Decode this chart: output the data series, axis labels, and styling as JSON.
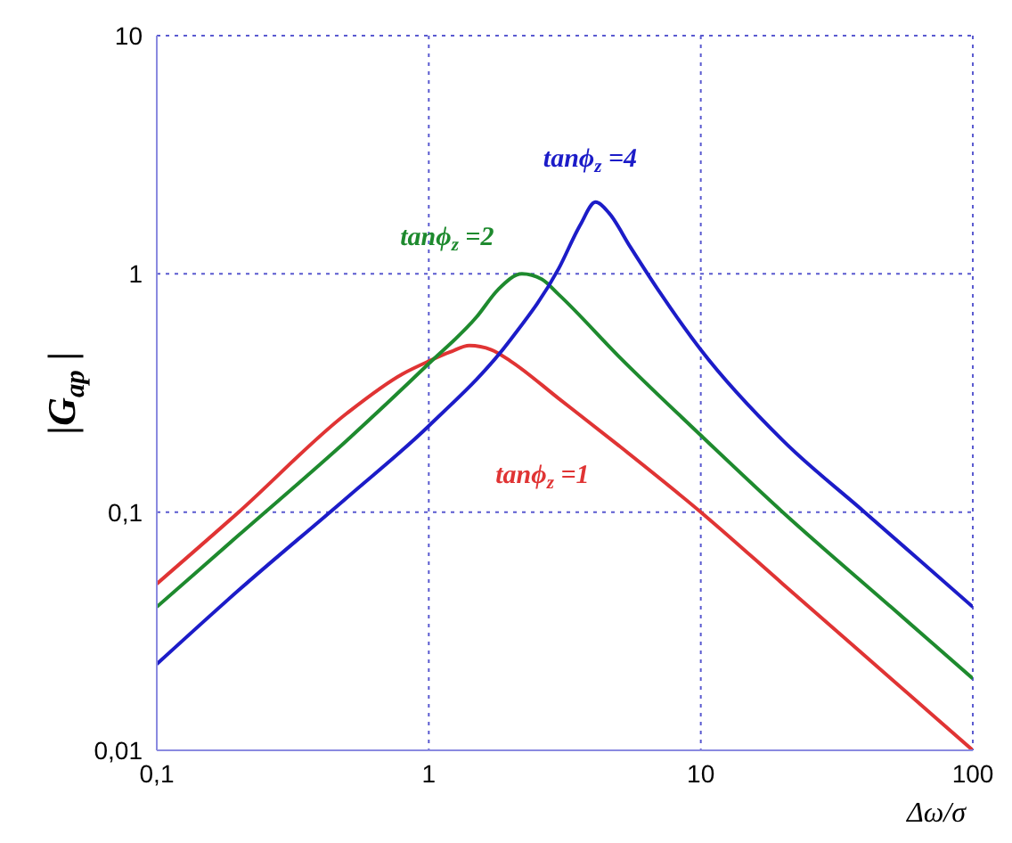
{
  "chart_data": {
    "type": "line",
    "xlabel": "Δω/σ",
    "ylabel": "|G$_{ap}$|",
    "log": "xy",
    "grid": true,
    "legend": false,
    "marker": "none",
    "line_style": "solid",
    "xlim": [
      0.1,
      100
    ],
    "xticks": [
      {
        "value": 0.1,
        "label": "0,1"
      },
      1,
      10,
      100
    ],
    "ylim": [
      0.01,
      10
    ],
    "yticks": [
      {
        "value": 0.01,
        "label": "0,01"
      },
      {
        "value": 0.1,
        "label": "0,1"
      },
      1,
      10
    ],
    "series": [
      {
        "name": "tanϕ$_{z}$ =1",
        "color": "#e03434",
        "x": [
          0.1,
          0.2,
          0.5,
          0.8,
          1,
          1.2,
          1.41,
          1.7,
          2,
          3,
          5,
          10,
          20,
          50,
          100
        ],
        "values": [
          0.05,
          0.1,
          0.26,
          0.38,
          0.43,
          0.47,
          0.5,
          0.48,
          0.43,
          0.3,
          0.19,
          0.1,
          0.05,
          0.02,
          0.01
        ]
      },
      {
        "name": "tanϕ$_{z}$ =2",
        "color": "#1e8a2e",
        "x": [
          0.1,
          0.2,
          0.5,
          1,
          1.5,
          1.8,
          2.2,
          2.6,
          3,
          5,
          10,
          20,
          50,
          100
        ],
        "values": [
          0.04,
          0.08,
          0.2,
          0.42,
          0.66,
          0.86,
          1.0,
          0.95,
          0.82,
          0.45,
          0.21,
          0.1,
          0.04,
          0.02
        ]
      },
      {
        "name": "tanϕ$_{z}$ =4",
        "color": "#1c1cc8",
        "x": [
          0.1,
          0.2,
          0.5,
          1,
          2,
          3,
          3.6,
          4.1,
          4.6,
          5.5,
          7,
          10,
          20,
          40,
          100
        ],
        "values": [
          0.023,
          0.047,
          0.115,
          0.23,
          0.53,
          1.05,
          1.6,
          2.0,
          1.8,
          1.3,
          0.85,
          0.48,
          0.2,
          0.1,
          0.04
        ]
      }
    ]
  }
}
